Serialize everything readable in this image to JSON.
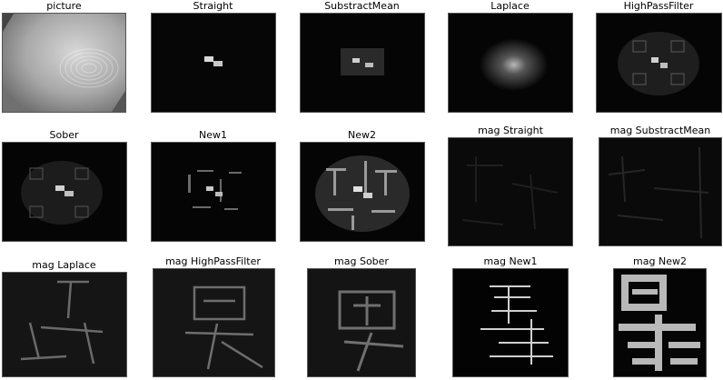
{
  "panels": [
    {
      "title": "picture"
    },
    {
      "title": "Straight"
    },
    {
      "title": "SubstractMean"
    },
    {
      "title": "Laplace"
    },
    {
      "title": "HighPassFilter"
    },
    {
      "title": "Sober"
    },
    {
      "title": "New1"
    },
    {
      "title": "New2"
    },
    {
      "title": "mag Straight"
    },
    {
      "title": "mag SubstractMean"
    },
    {
      "title": "mag Laplace"
    },
    {
      "title": "mag HighPassFilter"
    },
    {
      "title": "mag Sober"
    },
    {
      "title": "mag New1"
    },
    {
      "title": "mag New2"
    }
  ]
}
